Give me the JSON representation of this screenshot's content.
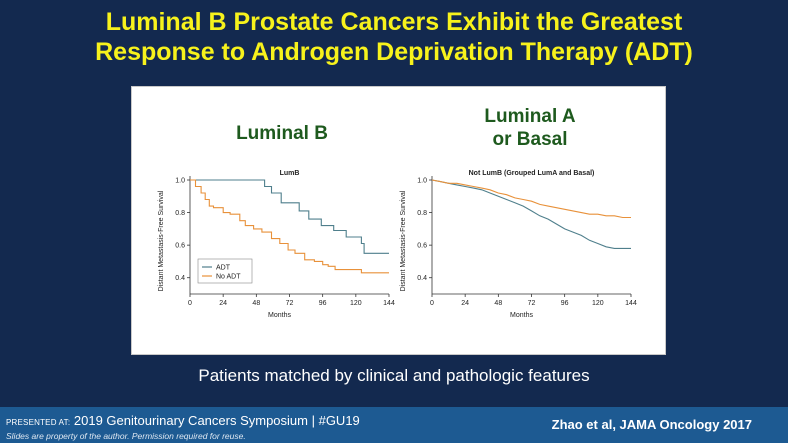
{
  "slide": {
    "title_line1": "Luminal B Prostate Cancers Exhibit the Greatest",
    "title_line2": "Response to Androgen Deprivation Therapy (ADT)",
    "left_label": "Luminal B",
    "right_label_line1": "Luminal A",
    "right_label_line2": "or Basal",
    "subtitle": "Patients matched by clinical and pathologic features"
  },
  "footer": {
    "presented_at": "PRESENTED AT:",
    "meeting": "2019 Genitourinary Cancers Symposium  |  #GU19",
    "disclaimer": "Slides are property of the author. Permission required for reuse.",
    "citation": "Zhao et al, JAMA Oncology 2017"
  },
  "colors": {
    "adt": "#4f7f8c",
    "no_adt": "#e8913a",
    "background": "#13294f",
    "title": "#f7f21c"
  },
  "chart_data": [
    {
      "type": "line",
      "title": "LumB",
      "xlabel": "Months",
      "ylabel": "Distant Metastasis-Free Survival",
      "xlim": [
        0,
        144
      ],
      "ylim": [
        0.3,
        1.0
      ],
      "xticks": [
        0,
        24,
        48,
        72,
        96,
        120,
        144
      ],
      "xtick_labels": [
        "0",
        "24",
        "48",
        "72",
        "96",
        "120",
        "144"
      ],
      "yticks": [
        0.4,
        0.6,
        0.8,
        1.0
      ],
      "ytick_labels": [
        "0.4",
        "0.6",
        "0.8",
        "1.0"
      ],
      "legend": [
        "ADT",
        "No ADT"
      ],
      "legend_position": "lower-left",
      "series": [
        {
          "name": "ADT",
          "x": [
            0,
            54,
            54,
            59,
            59,
            66,
            66,
            79,
            79,
            86,
            86,
            95,
            95,
            104,
            104,
            113,
            113,
            124,
            124,
            126,
            126,
            136,
            136,
            144
          ],
          "y": [
            1.0,
            1.0,
            0.96,
            0.96,
            0.92,
            0.92,
            0.86,
            0.86,
            0.81,
            0.81,
            0.76,
            0.76,
            0.72,
            0.72,
            0.69,
            0.69,
            0.65,
            0.65,
            0.61,
            0.61,
            0.55,
            0.55,
            0.55,
            0.55
          ]
        },
        {
          "name": "No ADT",
          "x": [
            0,
            4,
            4,
            8,
            8,
            11,
            11,
            14,
            14,
            17,
            17,
            24,
            24,
            29,
            29,
            36,
            36,
            40,
            40,
            46,
            46,
            52,
            52,
            59,
            59,
            65,
            65,
            71,
            71,
            76,
            76,
            83,
            83,
            90,
            90,
            96,
            96,
            100,
            100,
            105,
            105,
            114,
            114,
            120,
            120,
            124,
            124,
            134,
            134,
            144
          ],
          "y": [
            1.0,
            1.0,
            0.96,
            0.96,
            0.92,
            0.92,
            0.88,
            0.88,
            0.84,
            0.84,
            0.83,
            0.83,
            0.8,
            0.8,
            0.79,
            0.79,
            0.75,
            0.75,
            0.72,
            0.72,
            0.7,
            0.7,
            0.68,
            0.68,
            0.64,
            0.64,
            0.61,
            0.61,
            0.57,
            0.57,
            0.55,
            0.55,
            0.51,
            0.51,
            0.5,
            0.5,
            0.48,
            0.48,
            0.47,
            0.47,
            0.45,
            0.45,
            0.45,
            0.45,
            0.45,
            0.45,
            0.43,
            0.43,
            0.43,
            0.43
          ]
        }
      ]
    },
    {
      "type": "line",
      "title": "Not LumB (Grouped LumA and Basal)",
      "xlabel": "Months",
      "ylabel": "Distant Metastasis-Free Survival",
      "xlim": [
        0,
        144
      ],
      "ylim": [
        0.3,
        1.0
      ],
      "xticks": [
        0,
        24,
        48,
        72,
        96,
        120,
        144
      ],
      "xtick_labels": [
        "0",
        "24",
        "48",
        "72",
        "96",
        "120",
        "144"
      ],
      "yticks": [
        0.4,
        0.6,
        0.8,
        1.0
      ],
      "ytick_labels": [
        "0.4",
        "0.6",
        "0.8",
        "1.0"
      ],
      "series": [
        {
          "name": "ADT",
          "x": [
            0,
            6,
            12,
            18,
            24,
            30,
            36,
            42,
            48,
            54,
            60,
            66,
            72,
            78,
            84,
            90,
            96,
            102,
            108,
            114,
            120,
            126,
            132,
            138,
            144
          ],
          "y": [
            1.0,
            0.99,
            0.98,
            0.97,
            0.96,
            0.95,
            0.94,
            0.92,
            0.9,
            0.88,
            0.86,
            0.84,
            0.81,
            0.78,
            0.76,
            0.73,
            0.7,
            0.68,
            0.66,
            0.63,
            0.61,
            0.59,
            0.58,
            0.58,
            0.58
          ]
        },
        {
          "name": "No ADT",
          "x": [
            0,
            6,
            12,
            18,
            24,
            30,
            36,
            42,
            48,
            54,
            60,
            66,
            72,
            78,
            84,
            90,
            96,
            102,
            108,
            114,
            120,
            126,
            132,
            138,
            144
          ],
          "y": [
            1.0,
            0.99,
            0.98,
            0.98,
            0.97,
            0.96,
            0.95,
            0.94,
            0.92,
            0.91,
            0.89,
            0.88,
            0.87,
            0.85,
            0.84,
            0.83,
            0.82,
            0.81,
            0.8,
            0.79,
            0.79,
            0.78,
            0.78,
            0.77,
            0.77
          ]
        }
      ]
    }
  ]
}
